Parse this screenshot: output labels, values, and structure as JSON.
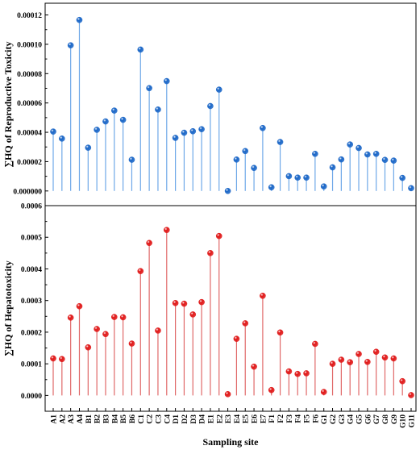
{
  "chart_data": [
    {
      "type": "lollipop",
      "ylabel": "∑HQ of Reproductive Toxicity",
      "ylim": [
        -1e-05,
        0.000128
      ],
      "yticks": [
        "0.000000",
        "0.00002",
        "0.00004",
        "0.00006",
        "0.00008",
        "0.00010",
        "0.00012"
      ],
      "ytick_values": [
        0,
        2e-05,
        4e-05,
        6e-05,
        8e-05,
        0.0001,
        0.00012
      ],
      "color": "#1a66c7",
      "stem_color": "#6ea8e8",
      "categories": [
        "A1",
        "A2",
        "A3",
        "A4",
        "B1",
        "B2",
        "B3",
        "B4",
        "B5",
        "B6",
        "C1",
        "C2",
        "C3",
        "C4",
        "D1",
        "D2",
        "D3",
        "D4",
        "E1",
        "E2",
        "E3",
        "E4",
        "E5",
        "E6",
        "E7",
        "F1",
        "F2",
        "F3",
        "F4",
        "F5",
        "F6",
        "G1",
        "G2",
        "G3",
        "G4",
        "G5",
        "G6",
        "G7",
        "G8",
        "G9",
        "G10",
        "G11"
      ],
      "values": [
        4.05e-05,
        3.57e-05,
        9.93e-05,
        0.0001166,
        2.95e-05,
        4.17e-05,
        4.74e-05,
        5.48e-05,
        4.85e-05,
        2.13e-05,
        9.64e-05,
        7.01e-05,
        5.55e-05,
        7.49e-05,
        3.62e-05,
        3.97e-05,
        4.07e-05,
        4.21e-05,
        5.79e-05,
        6.91e-05,
        0.0,
        2.14e-05,
        2.72e-05,
        1.57e-05,
        4.29e-05,
        2.5e-06,
        3.34e-05,
        1.01e-05,
        9.1e-06,
        9.1e-06,
        2.53e-05,
        3.1e-06,
        1.61e-05,
        2.15e-05,
        3.17e-05,
        2.93e-05,
        2.49e-05,
        2.53e-05,
        2.12e-05,
        2.07e-05,
        8.9e-06,
        1.9e-06
      ]
    },
    {
      "type": "lollipop",
      "ylabel": "∑HQ of Hepatotoxicity",
      "xlabel": "Sampling site",
      "ylim": [
        -5e-05,
        0.0006
      ],
      "yticks": [
        "0.0000",
        "0.0001",
        "0.0002",
        "0.0003",
        "0.0004",
        "0.0005",
        "0.0006"
      ],
      "ytick_values": [
        0,
        0.0001,
        0.0002,
        0.0003,
        0.0004,
        0.0005,
        0.0006
      ],
      "color": "#e01818",
      "stem_color": "#e06868",
      "categories": [
        "A1",
        "A2",
        "A3",
        "A4",
        "B1",
        "B2",
        "B3",
        "B4",
        "B5",
        "B6",
        "C1",
        "C2",
        "C3",
        "C4",
        "D1",
        "D2",
        "D3",
        "D4",
        "E1",
        "E2",
        "E3",
        "E4",
        "E5",
        "E6",
        "E7",
        "F1",
        "F2",
        "F3",
        "F4",
        "F5",
        "F6",
        "G1",
        "G2",
        "G3",
        "G4",
        "G5",
        "G6",
        "G7",
        "G8",
        "G9",
        "G10",
        "G11"
      ],
      "values": [
        0.000117,
        0.000115,
        0.000246,
        0.000282,
        0.000152,
        0.00021,
        0.000194,
        0.000248,
        0.000247,
        0.000164,
        0.000393,
        0.000482,
        0.000205,
        0.000523,
        0.000292,
        0.00029,
        0.000256,
        0.000295,
        0.00045,
        0.000504,
        4e-06,
        0.000179,
        0.000228,
        9.1e-05,
        0.000315,
        1.7e-05,
        0.000199,
        7.6e-05,
        6.8e-05,
        7e-05,
        0.000163,
        1.1e-05,
        0.0001,
        0.000113,
        0.000105,
        0.000131,
        0.000106,
        0.000138,
        0.00012,
        0.000117,
        4.5e-05,
        1e-06
      ]
    }
  ]
}
